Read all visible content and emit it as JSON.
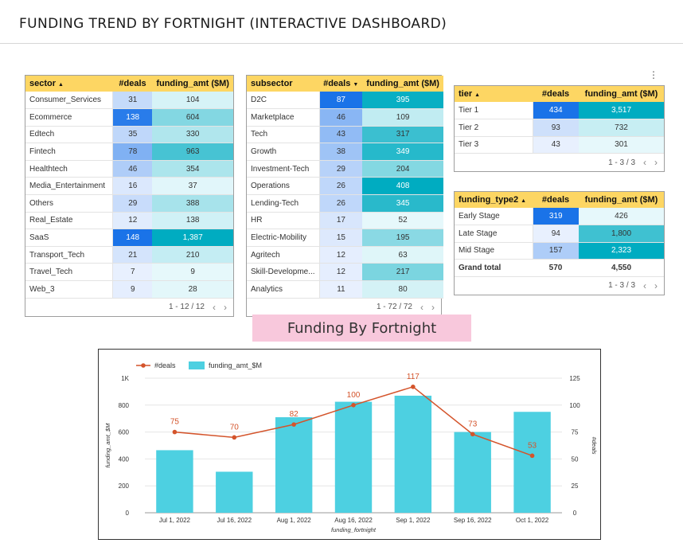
{
  "title": "FUNDING TREND BY FORTNIGHT (INTERACTIVE DASHBOARD)",
  "menu_icon": "more-vert-icon",
  "colors": {
    "header_bg": "#fdd663",
    "bar": "#4dd0e1",
    "line": "#d4542b",
    "banner": "#f8c8dc"
  },
  "sector_table": {
    "headers": [
      "sector",
      "#deals",
      "funding_amt ($M)"
    ],
    "rows": [
      [
        "Consumer_Services",
        "31",
        "104"
      ],
      [
        "Ecommerce",
        "138",
        "604"
      ],
      [
        "Edtech",
        "35",
        "330"
      ],
      [
        "Fintech",
        "78",
        "963"
      ],
      [
        "Healthtech",
        "46",
        "354"
      ],
      [
        "Media_Entertainment",
        "16",
        "37"
      ],
      [
        "Others",
        "29",
        "388"
      ],
      [
        "Real_Estate",
        "12",
        "138"
      ],
      [
        "SaaS",
        "148",
        "1,387"
      ],
      [
        "Transport_Tech",
        "21",
        "210"
      ],
      [
        "Travel_Tech",
        "7",
        "9"
      ],
      [
        "Web_3",
        "9",
        "28"
      ]
    ],
    "pager": "1 - 12 / 12"
  },
  "subsector_table": {
    "headers": [
      "subsector",
      "#deals",
      "funding_amt ($M)"
    ],
    "rows": [
      [
        "D2C",
        "87",
        "395"
      ],
      [
        "Marketplace",
        "46",
        "109"
      ],
      [
        "Tech",
        "43",
        "317"
      ],
      [
        "Growth",
        "38",
        "349"
      ],
      [
        "Investment-Tech",
        "29",
        "204"
      ],
      [
        "Operations",
        "26",
        "408"
      ],
      [
        "Lending-Tech",
        "26",
        "345"
      ],
      [
        "HR",
        "17",
        "52"
      ],
      [
        "Electric-Mobility",
        "15",
        "195"
      ],
      [
        "Agritech",
        "12",
        "63"
      ],
      [
        "Skill-Developme...",
        "12",
        "217"
      ],
      [
        "Analytics",
        "11",
        "80"
      ]
    ],
    "pager": "1 - 72 / 72"
  },
  "tier_table": {
    "headers": [
      "tier",
      "#deals",
      "funding_amt ($M)"
    ],
    "rows": [
      [
        "Tier 1",
        "434",
        "3,517"
      ],
      [
        "Tier 2",
        "93",
        "732"
      ],
      [
        "Tier 3",
        "43",
        "301"
      ]
    ],
    "pager": "1 - 3 / 3"
  },
  "funding_type_table": {
    "headers": [
      "funding_type2",
      "#deals",
      "funding_amt ($M)"
    ],
    "rows": [
      [
        "Early Stage",
        "319",
        "426"
      ],
      [
        "Late Stage",
        "94",
        "1,800"
      ],
      [
        "Mid Stage",
        "157",
        "2,323"
      ]
    ],
    "total": [
      "Grand total",
      "570",
      "4,550"
    ],
    "pager": "1 - 3 / 3"
  },
  "pager_prev": "‹",
  "pager_next": "›",
  "banner": "Funding By Fortnight",
  "chart_data": {
    "type": "bar",
    "categories": [
      "Jul 1, 2022",
      "Jul 16, 2022",
      "Aug 1, 2022",
      "Aug 16, 2022",
      "Sep 1, 2022",
      "Sep 16, 2022",
      "Oct 1, 2022"
    ],
    "series": [
      {
        "name": "funding_amt_$M",
        "type": "bar",
        "axis": "left",
        "values": [
          465,
          305,
          710,
          825,
          870,
          600,
          750
        ]
      },
      {
        "name": "#deals",
        "type": "line",
        "axis": "right",
        "values": [
          75,
          70,
          82,
          100,
          117,
          73,
          53
        ]
      }
    ],
    "xlabel": "funding_fortnight",
    "ylabel": "funding_amt_$M",
    "y2label": "#deals",
    "ylim": [
      0,
      1000
    ],
    "y2lim": [
      0,
      125
    ],
    "yticks": [
      "0",
      "200",
      "400",
      "600",
      "800",
      "1K"
    ],
    "y2ticks": [
      "0",
      "25",
      "50",
      "75",
      "100",
      "125"
    ],
    "legend": "top-left",
    "grid": true
  }
}
